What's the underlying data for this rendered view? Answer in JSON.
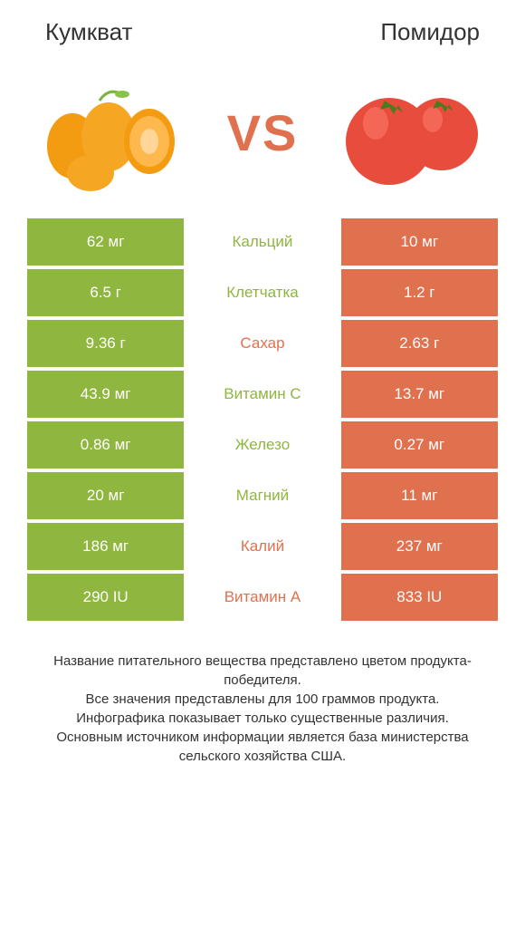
{
  "colors": {
    "left_food": "#8fb63f",
    "right_food": "#e0714f",
    "vs_text": "#e0714f",
    "text_dark": "#333333",
    "white": "#ffffff"
  },
  "header": {
    "left_title": "Кумкват",
    "right_title": "Помидор",
    "vs": "VS"
  },
  "nutrients": [
    {
      "name": "Кальций",
      "left": "62 мг",
      "right": "10 мг",
      "winner": "left"
    },
    {
      "name": "Клетчатка",
      "left": "6.5 г",
      "right": "1.2 г",
      "winner": "left"
    },
    {
      "name": "Сахар",
      "left": "9.36 г",
      "right": "2.63 г",
      "winner": "right"
    },
    {
      "name": "Витамин C",
      "left": "43.9 мг",
      "right": "13.7 мг",
      "winner": "left"
    },
    {
      "name": "Железо",
      "left": "0.86 мг",
      "right": "0.27 мг",
      "winner": "left"
    },
    {
      "name": "Магний",
      "left": "20 мг",
      "right": "11 мг",
      "winner": "left"
    },
    {
      "name": "Калий",
      "left": "186 мг",
      "right": "237 мг",
      "winner": "right"
    },
    {
      "name": "Витамин A",
      "left": "290 IU",
      "right": "833 IU",
      "winner": "right"
    }
  ],
  "footer": {
    "line1": "Название питательного вещества представлено цветом продукта-победителя.",
    "line2": "Все значения представлены для 100 граммов продукта.",
    "line3": "Инфографика показывает только существенные различия.",
    "line4": "Основным источником информации является база министерства сельского хозяйства США."
  }
}
